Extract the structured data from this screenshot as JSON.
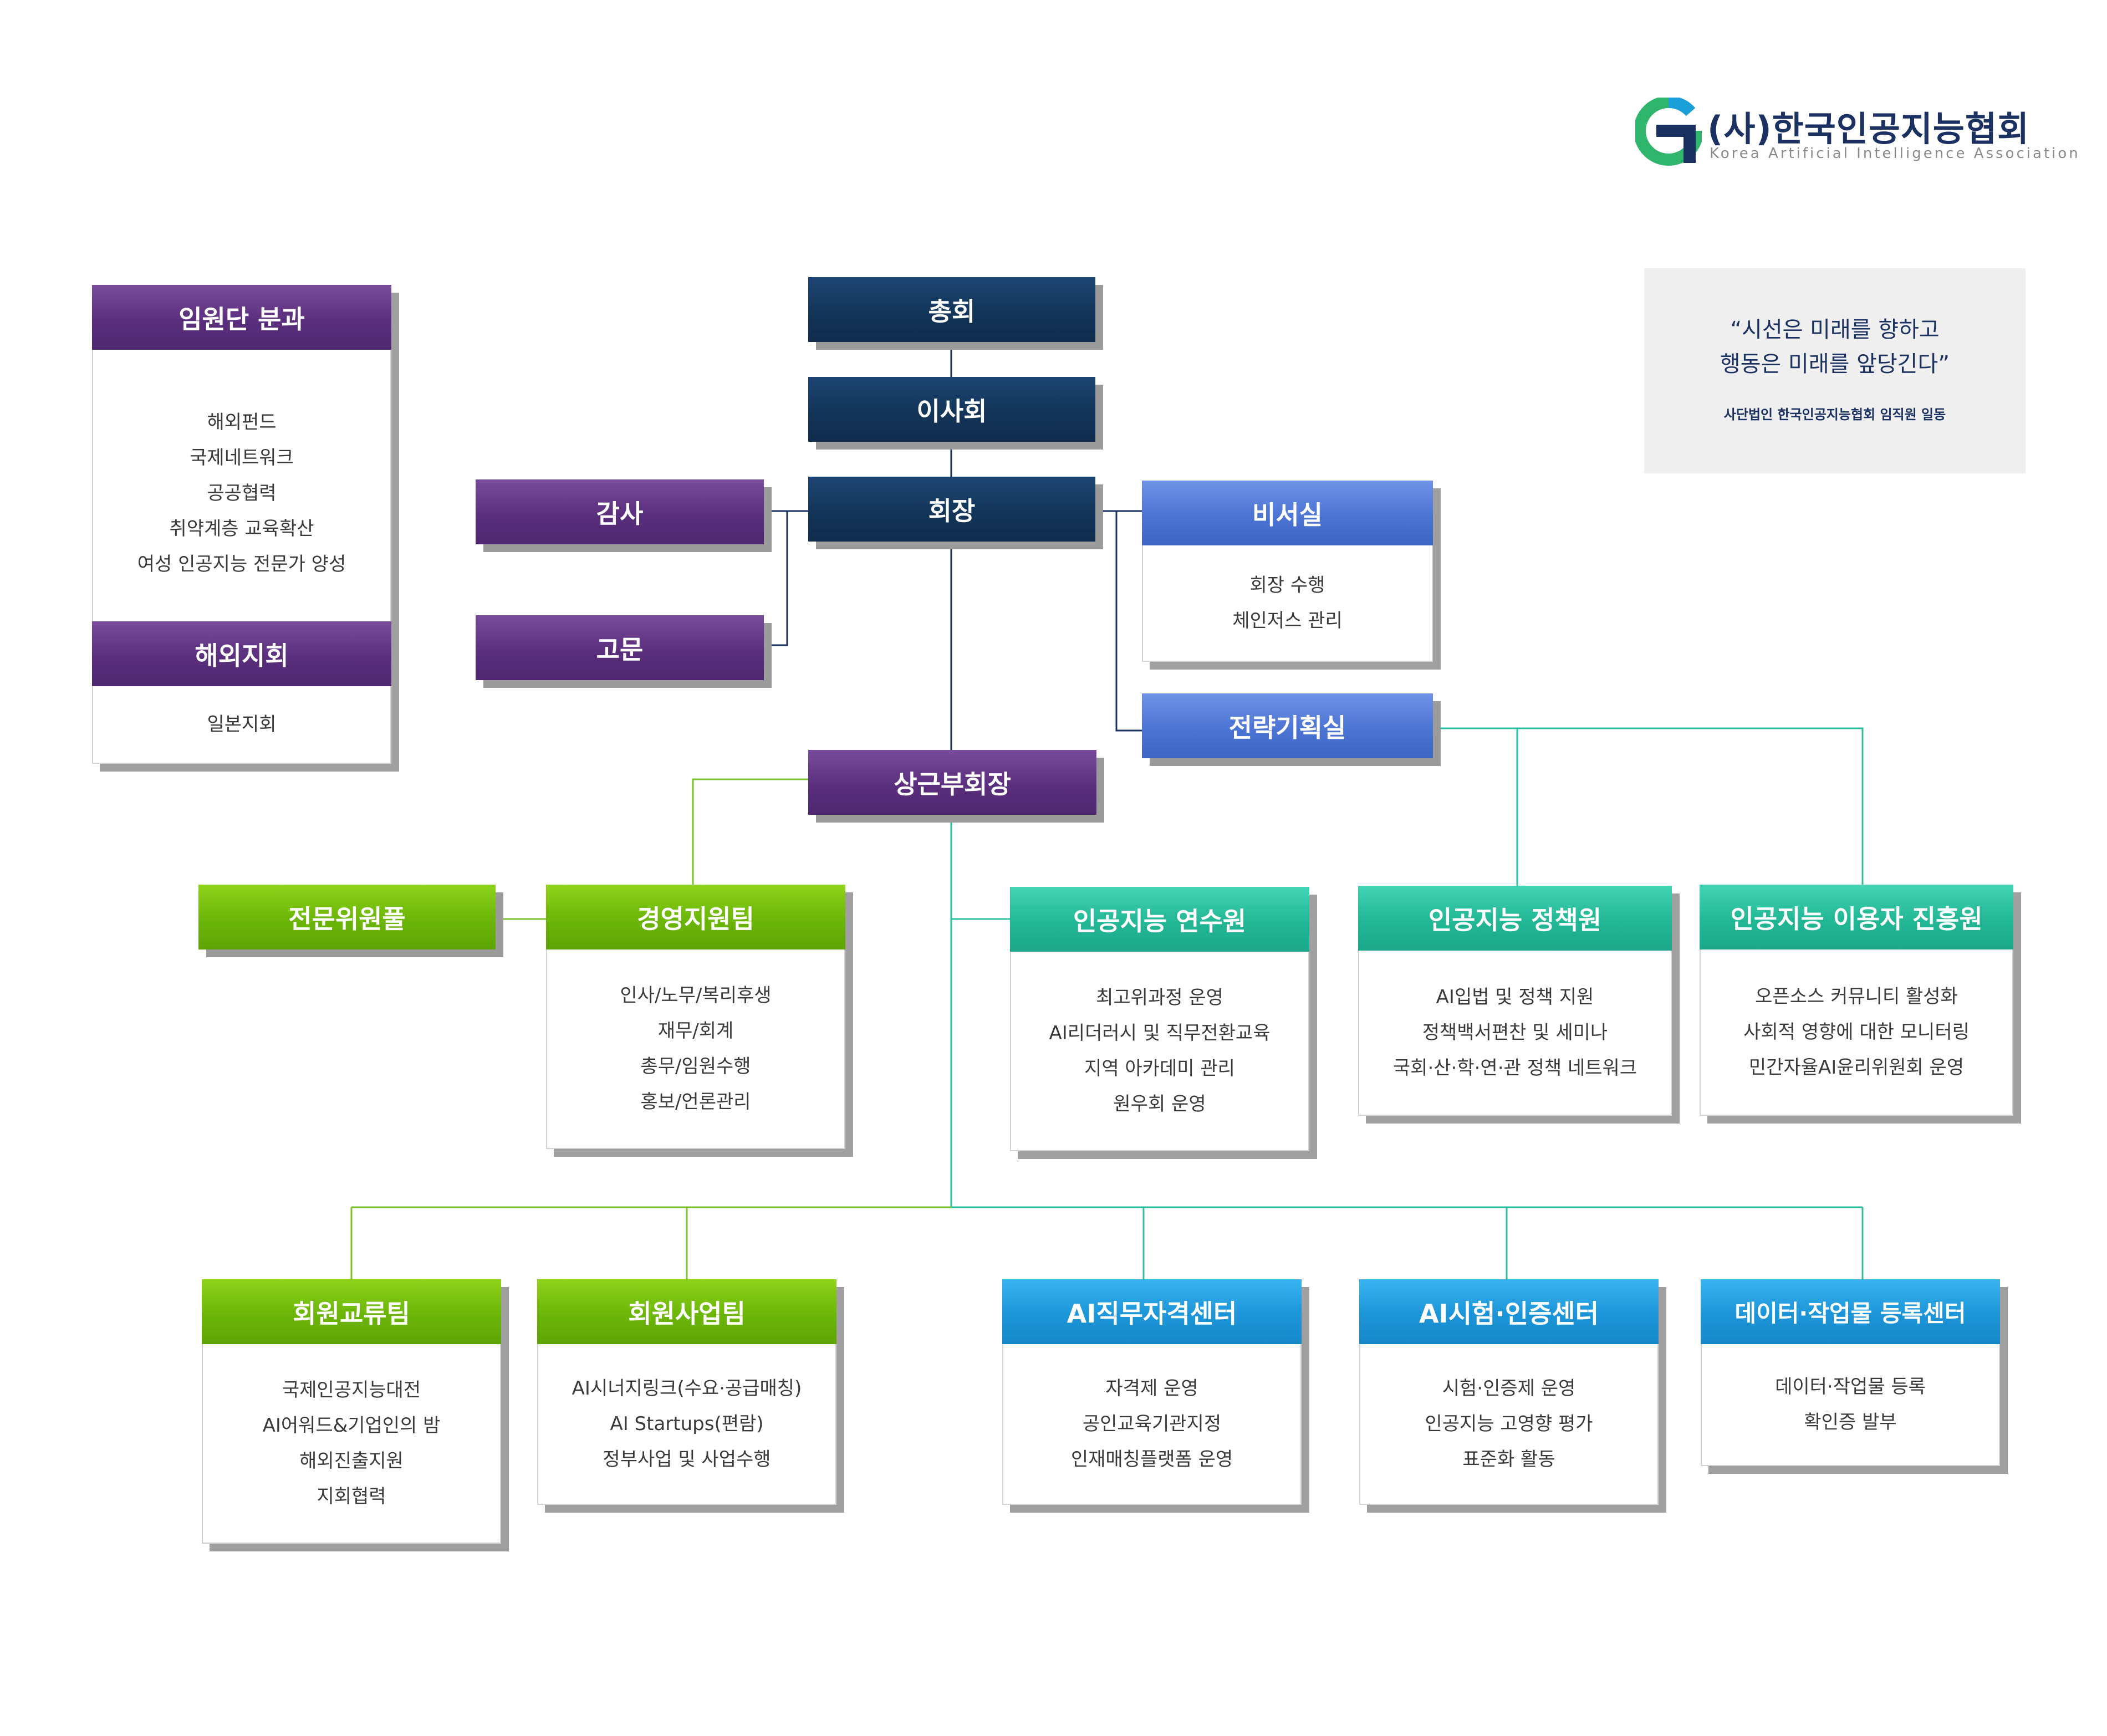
{
  "logo": {
    "title": "(사)한국인공지능협회",
    "subtitle": "Korea  Artificial  Intelligence  Association"
  },
  "quote": {
    "line1": "“시선은 미래를 향하고",
    "line2": "행동은 미래를 앞당긴다”",
    "author": "사단법인 한국인공지능협회 임직원 일동"
  },
  "colors": {
    "navy": "#133559",
    "purple": "#5a2f7d",
    "blue": "#4a72d2",
    "green": "#6cb609",
    "teal": "#22b795",
    "sky": "#1c95d8",
    "line_navy": "#1b3162",
    "line_green": "#7cc230",
    "line_teal": "#2cc0a0"
  },
  "org": {
    "general_meeting": "총회",
    "board": "이사회",
    "president": "회장",
    "audit": "감사",
    "advisor": "고문",
    "standing_vp": "상근부회장",
    "secretariat": {
      "title": "비서실",
      "items": [
        "회장 수행",
        "체인저스 관리"
      ]
    },
    "strategy_office": "전략기획실",
    "executive_committee": {
      "title": "임원단 분과",
      "items": [
        "해외펀드",
        "국제네트워크",
        "공공협력",
        "취약계층 교육확산",
        "여성 인공지능 전문가 양성"
      ]
    },
    "overseas_branch": {
      "title": "해외지회",
      "items": [
        "일본지회"
      ]
    },
    "expert_pool": "전문위원풀",
    "management_support": {
      "title": "경영지원팀",
      "items": [
        "인사/노무/복리후생",
        "재무/회계",
        "총무/임원수행",
        "홍보/언론관리"
      ]
    },
    "ai_training_institute": {
      "title": "인공지능 연수원",
      "items": [
        "최고위과정 운영",
        "AI리더러시 및 직무전환교육",
        "지역 아카데미 관리",
        "원우회 운영"
      ]
    },
    "ai_policy_institute": {
      "title": "인공지능 정책원",
      "items": [
        "AI입법 및 정책 지원",
        "정책백서편찬 및 세미나",
        "국회·산·학·연·관 정책 네트워크"
      ]
    },
    "ai_user_promotion": {
      "title": "인공지능 이용자 진흥원",
      "items": [
        "오픈소스 커뮤니티 활성화",
        "사회적 영향에 대한 모니터링",
        "민간자율AI윤리위원회 운영"
      ]
    },
    "member_exchange": {
      "title": "회원교류팀",
      "items": [
        "국제인공지능대전",
        "AI어워드&기업인의 밤",
        "해외진출지원",
        "지회협력"
      ]
    },
    "member_business": {
      "title": "회원사업팀",
      "items": [
        "AI시너지링크(수요·공급매칭)",
        "AI Startups(편람)",
        "정부사업 및 사업수행"
      ]
    },
    "ai_job_cert": {
      "title": "AI직무자격센터",
      "items": [
        "자격제 운영",
        "공인교육기관지정",
        "인재매칭플랫폼 운영"
      ]
    },
    "ai_test_cert": {
      "title": "AI시험·인증센터",
      "items": [
        "시험·인증제 운영",
        "인공지능 고영향 평가",
        "표준화 활동"
      ]
    },
    "data_registry": {
      "title": "데이터·작업물 등록센터",
      "items": [
        "데이터·작업물 등록",
        "확인증 발부"
      ]
    }
  }
}
